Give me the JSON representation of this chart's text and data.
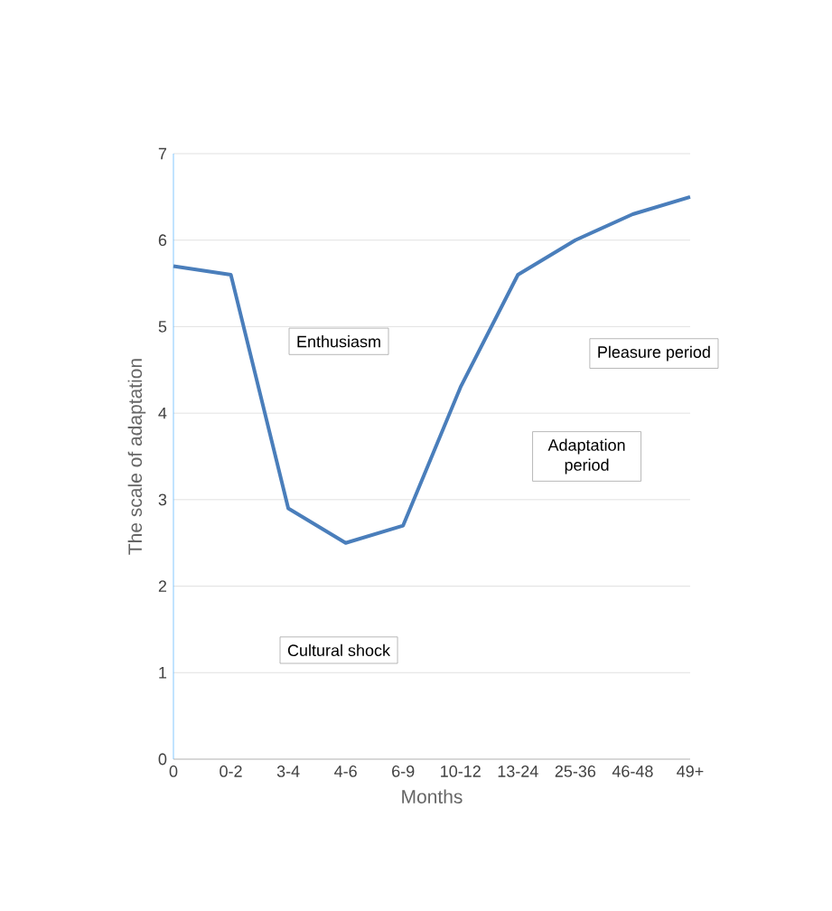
{
  "chart_data": {
    "type": "line",
    "xlabel": "Months",
    "ylabel": "The scale of adaptation",
    "categories": [
      "0",
      "0-2",
      "3-4",
      "4-6",
      "6-9",
      "10-12",
      "13-24",
      "25-36",
      "46-48",
      "49+"
    ],
    "values": [
      5.7,
      5.6,
      2.9,
      2.5,
      2.7,
      4.3,
      5.6,
      6.0,
      6.3,
      6.5
    ],
    "color": "#4a7ebb",
    "ylim": [
      0,
      7
    ],
    "yticks": [
      0,
      1,
      2,
      3,
      4,
      5,
      6,
      7
    ],
    "grid": "y",
    "marker": "none",
    "line_style": "solid",
    "annotations": [
      "Enthusiasm",
      "Pleasure period",
      "Adaptation period",
      "Cultural shock"
    ]
  }
}
